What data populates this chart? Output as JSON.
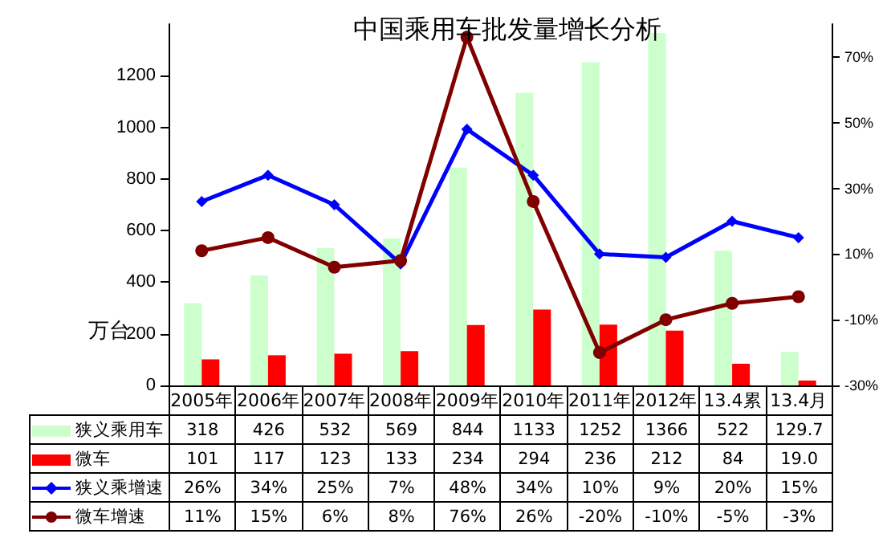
{
  "chart_data": {
    "type": "bar",
    "title": "中国乘用车批发量增长分析",
    "ylabel": "万台",
    "categories": [
      "2005年",
      "2006年",
      "2007年",
      "2008年",
      "2009年",
      "2010年",
      "2011年",
      "2012年",
      "13.4累",
      "13.4月"
    ],
    "series": [
      {
        "name": "狭义乘用车",
        "color": "#ccffcc",
        "values": [
          318,
          426,
          532,
          569,
          844,
          1133,
          1252,
          1366,
          522,
          129.7
        ],
        "value_labels": [
          "318",
          "426",
          "532",
          "569",
          "844",
          "1133",
          "1252",
          "1366",
          "522",
          "129.7"
        ]
      },
      {
        "name": "微车",
        "color": "#ff0000",
        "values": [
          101,
          117,
          123,
          133,
          234,
          294,
          236,
          212,
          84,
          19.0
        ],
        "value_labels": [
          "101",
          "117",
          "123",
          "133",
          "234",
          "294",
          "236",
          "212",
          "84",
          "19.0"
        ]
      },
      {
        "name": "狭义乘增速",
        "type": "line",
        "axis": "y2",
        "marker": "diamond",
        "color": "#0000ff",
        "values": [
          26,
          34,
          25,
          7,
          48,
          34,
          10,
          9,
          20,
          15
        ],
        "value_labels": [
          "26%",
          "34%",
          "25%",
          "7%",
          "48%",
          "34%",
          "10%",
          "9%",
          "20%",
          "15%"
        ]
      },
      {
        "name": "微车增速",
        "type": "line",
        "axis": "y2",
        "marker": "circle",
        "color": "#800000",
        "values": [
          11,
          15,
          6,
          8,
          76,
          26,
          -20,
          -10,
          -5,
          -3
        ],
        "value_labels": [
          "11%",
          "15%",
          "6%",
          "8%",
          "76%",
          "26%",
          "-20%",
          "-10%",
          "-5%",
          "-3%"
        ]
      }
    ],
    "ylim": [
      0,
      1400
    ],
    "yticks": [
      0,
      200,
      400,
      600,
      800,
      1000,
      1200
    ],
    "y2lim": [
      -30,
      80
    ],
    "y2ticks": [
      {
        "value": -30,
        "label": "-30%"
      },
      {
        "value": -10,
        "label": "-10%"
      },
      {
        "value": 10,
        "label": "10%"
      },
      {
        "value": 30,
        "label": "30%"
      },
      {
        "value": 50,
        "label": "50%"
      },
      {
        "value": 70,
        "label": "70%"
      }
    ],
    "grid": false,
    "legend": "bottom left"
  }
}
